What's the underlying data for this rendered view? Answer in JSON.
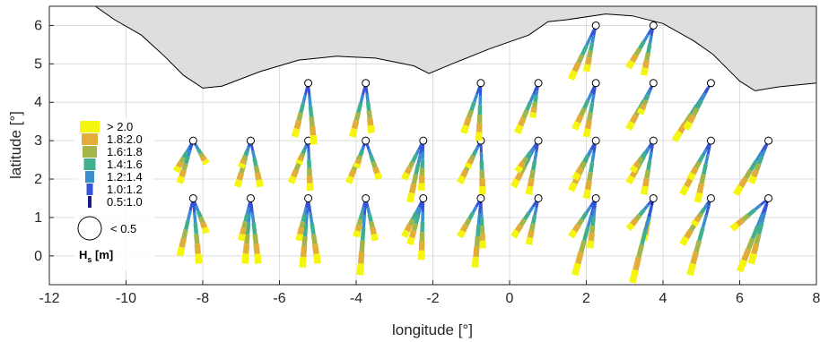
{
  "chart_data": {
    "type": "scatter",
    "xlabel": "longitude [°]",
    "ylabel": "latitude [°]",
    "xlim": [
      -12,
      8
    ],
    "ylim": [
      -0.75,
      6.5
    ],
    "x_ticks": [
      -12,
      -10,
      -8,
      -6,
      -4,
      -2,
      0,
      2,
      4,
      6,
      8
    ],
    "y_ticks": [
      0,
      1,
      2,
      3,
      4,
      5,
      6
    ],
    "grid": true,
    "land_color": "#dedede",
    "coastline": [
      [
        -10.8,
        6.5
      ],
      [
        -10.3,
        6.15
      ],
      [
        -9.6,
        5.75
      ],
      [
        -9.0,
        5.2
      ],
      [
        -8.5,
        4.7
      ],
      [
        -8.0,
        4.37
      ],
      [
        -7.5,
        4.42
      ],
      [
        -6.5,
        4.8
      ],
      [
        -5.5,
        5.1
      ],
      [
        -4.5,
        5.2
      ],
      [
        -3.5,
        5.15
      ],
      [
        -2.5,
        4.95
      ],
      [
        -2.1,
        4.75
      ],
      [
        -1.5,
        5.0
      ],
      [
        -0.5,
        5.4
      ],
      [
        0.5,
        5.75
      ],
      [
        1.0,
        6.1
      ],
      [
        1.5,
        6.15
      ],
      [
        2.5,
        6.3
      ],
      [
        3.2,
        6.25
      ],
      [
        4.0,
        6.05
      ],
      [
        4.8,
        5.6
      ],
      [
        5.3,
        5.25
      ],
      [
        5.7,
        4.85
      ],
      [
        6.0,
        4.55
      ],
      [
        6.4,
        4.3
      ],
      [
        7.0,
        4.4
      ],
      [
        7.5,
        4.45
      ],
      [
        8.0,
        4.5
      ]
    ],
    "stations": [
      {
        "lon": -8.25,
        "lat": 3.0,
        "arms": [
          [
            -8.7,
            2.2
          ],
          [
            -8.6,
            1.9
          ],
          [
            -7.9,
            2.4
          ]
        ]
      },
      {
        "lon": -6.75,
        "lat": 3.0,
        "arms": [
          [
            -7.1,
            1.8
          ],
          [
            -6.5,
            1.8
          ],
          [
            -7.0,
            2.3
          ]
        ]
      },
      {
        "lon": -5.25,
        "lat": 3.0,
        "arms": [
          [
            -5.7,
            1.9
          ],
          [
            -5.2,
            1.7
          ],
          [
            -5.5,
            2.4
          ]
        ]
      },
      {
        "lon": -3.75,
        "lat": 3.0,
        "arms": [
          [
            -4.2,
            1.9
          ],
          [
            -3.4,
            2.0
          ],
          [
            -4.0,
            2.3
          ]
        ]
      },
      {
        "lon": -2.25,
        "lat": 3.0,
        "arms": [
          [
            -2.6,
            1.4
          ],
          [
            -2.3,
            1.7
          ],
          [
            -2.75,
            2.0
          ]
        ]
      },
      {
        "lon": -0.75,
        "lat": 3.0,
        "arms": [
          [
            -1.3,
            1.9
          ],
          [
            -0.7,
            1.6
          ],
          [
            -1.1,
            2.3
          ]
        ]
      },
      {
        "lon": 0.75,
        "lat": 3.0,
        "arms": [
          [
            0.1,
            1.8
          ],
          [
            0.5,
            1.6
          ],
          [
            0.2,
            2.2
          ]
        ]
      },
      {
        "lon": 2.25,
        "lat": 3.0,
        "arms": [
          [
            1.6,
            1.7
          ],
          [
            2.0,
            1.5
          ],
          [
            1.7,
            2.0
          ]
        ]
      },
      {
        "lon": 3.75,
        "lat": 3.0,
        "arms": [
          [
            3.1,
            1.9
          ],
          [
            3.5,
            1.6
          ],
          [
            3.2,
            2.2
          ]
        ]
      },
      {
        "lon": 5.25,
        "lat": 3.0,
        "arms": [
          [
            4.5,
            1.6
          ],
          [
            4.9,
            1.4
          ],
          [
            4.7,
            2.0
          ]
        ]
      },
      {
        "lon": 6.75,
        "lat": 3.0,
        "arms": [
          [
            5.9,
            1.6
          ],
          [
            6.3,
            1.9
          ]
        ]
      },
      {
        "lon": -8.25,
        "lat": 1.5,
        "arms": [
          [
            -8.6,
            0.0
          ],
          [
            -8.1,
            -0.2
          ],
          [
            -7.9,
            0.6
          ]
        ]
      },
      {
        "lon": -6.75,
        "lat": 1.5,
        "arms": [
          [
            -6.9,
            -0.2
          ],
          [
            -6.55,
            -0.2
          ],
          [
            -7.0,
            0.4
          ]
        ]
      },
      {
        "lon": -5.25,
        "lat": 1.5,
        "arms": [
          [
            -5.4,
            -0.3
          ],
          [
            -5.0,
            -0.2
          ],
          [
            -5.5,
            0.4
          ]
        ]
      },
      {
        "lon": -3.75,
        "lat": 1.5,
        "arms": [
          [
            -3.9,
            -0.5
          ],
          [
            -3.5,
            0.4
          ],
          [
            -4.0,
            0.5
          ]
        ]
      },
      {
        "lon": -2.25,
        "lat": 1.5,
        "arms": [
          [
            -2.6,
            0.3
          ],
          [
            -2.3,
            -0.1
          ],
          [
            -2.75,
            0.5
          ]
        ]
      },
      {
        "lon": -0.75,
        "lat": 1.5,
        "arms": [
          [
            -1.3,
            0.5
          ],
          [
            -0.7,
            0.2
          ],
          [
            -0.9,
            -0.3
          ]
        ]
      },
      {
        "lon": 0.75,
        "lat": 1.5,
        "arms": [
          [
            0.1,
            0.5
          ],
          [
            0.5,
            0.3
          ]
        ]
      },
      {
        "lon": 2.25,
        "lat": 1.5,
        "arms": [
          [
            1.6,
            0.5
          ],
          [
            1.7,
            -0.5
          ],
          [
            2.1,
            0.2
          ]
        ]
      },
      {
        "lon": 3.75,
        "lat": 1.5,
        "arms": [
          [
            3.1,
            0.7
          ],
          [
            3.5,
            0.4
          ],
          [
            3.2,
            -0.7
          ]
        ]
      },
      {
        "lon": 5.25,
        "lat": 1.5,
        "arms": [
          [
            4.5,
            0.3
          ],
          [
            4.7,
            -0.5
          ],
          [
            4.8,
            0.8
          ]
        ]
      },
      {
        "lon": 6.75,
        "lat": 1.5,
        "arms": [
          [
            6.0,
            -0.4
          ],
          [
            6.3,
            -0.2
          ],
          [
            5.8,
            0.7
          ]
        ]
      },
      {
        "lon": -5.25,
        "lat": 4.5,
        "arms": [
          [
            -5.6,
            3.1
          ],
          [
            -5.1,
            2.9
          ]
        ]
      },
      {
        "lon": -3.75,
        "lat": 4.5,
        "arms": [
          [
            -4.1,
            3.1
          ],
          [
            -3.6,
            3.2
          ]
        ]
      },
      {
        "lon": -0.75,
        "lat": 4.5,
        "arms": [
          [
            -1.2,
            3.2
          ],
          [
            -0.8,
            3.0
          ]
        ]
      },
      {
        "lon": 0.75,
        "lat": 4.5,
        "arms": [
          [
            0.2,
            3.2
          ],
          [
            0.6,
            3.6
          ]
        ]
      },
      {
        "lon": 2.25,
        "lat": 4.5,
        "arms": [
          [
            1.7,
            3.3
          ],
          [
            2.0,
            3.1
          ]
        ]
      },
      {
        "lon": 3.75,
        "lat": 4.5,
        "arms": [
          [
            3.1,
            3.3
          ],
          [
            3.4,
            3.7
          ]
        ]
      },
      {
        "lon": 5.25,
        "lat": 4.5,
        "arms": [
          [
            4.3,
            3.0
          ],
          [
            4.6,
            3.3
          ]
        ]
      },
      {
        "lon": 2.25,
        "lat": 6.0,
        "arms": [
          [
            1.6,
            4.6
          ],
          [
            2.0,
            4.8
          ]
        ]
      },
      {
        "lon": 3.75,
        "lat": 6.0,
        "arms": [
          [
            3.1,
            4.9
          ],
          [
            3.5,
            4.7
          ]
        ]
      }
    ],
    "legend": {
      "title": "H",
      "title_sub": "s",
      "title_unit": "[m]",
      "items": [
        {
          "label": "> 2.0",
          "color": "#f5f50f"
        },
        {
          "label": "1.8:2.0",
          "color": "#e3ad3a"
        },
        {
          "label": "1.6:1.8",
          "color": "#a4b64a"
        },
        {
          "label": "1.4:1.6",
          "color": "#3fb08e"
        },
        {
          "label": "1.2:1.4",
          "color": "#3a8ed0"
        },
        {
          "label": "1.0:1.2",
          "color": "#3455d8"
        },
        {
          "label": "0.5:1.0",
          "color": "#1a1a80"
        },
        {
          "label": "< 0.5",
          "color": "#ffffff"
        }
      ]
    }
  }
}
